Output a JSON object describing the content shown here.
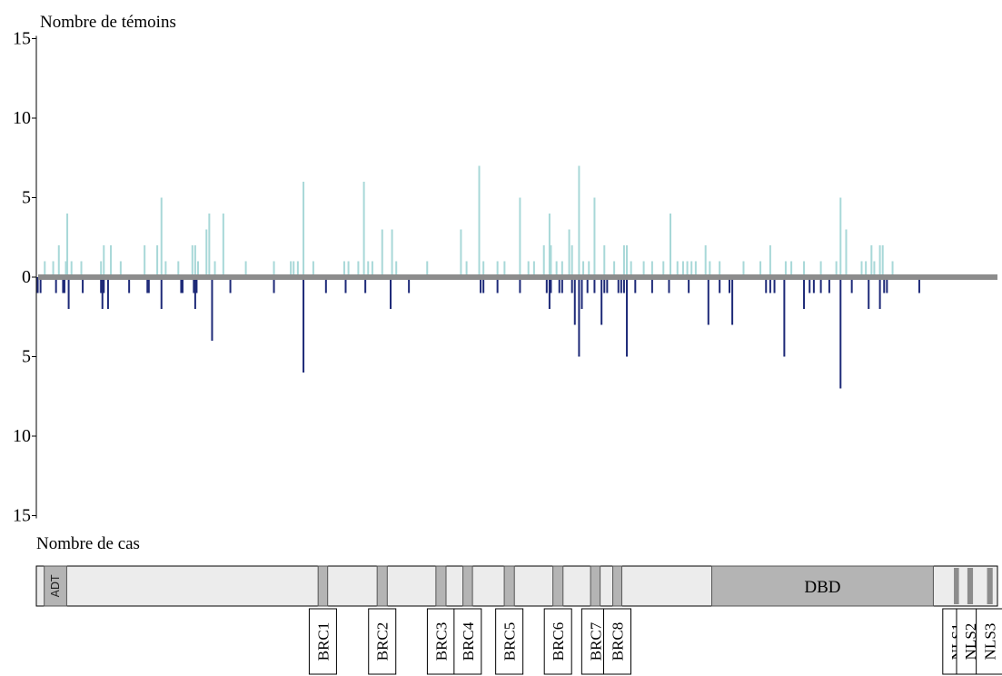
{
  "chart_data": {
    "type": "bar",
    "top_label": "Nombre de témoins",
    "bottom_label": "Nombre de cas",
    "y_ticks_top": [
      "15",
      "10",
      "5",
      "0"
    ],
    "y_ticks_bottom": [
      "5",
      "10",
      "15"
    ],
    "ylim_top": [
      0,
      15
    ],
    "ylim_bottom": [
      0,
      15
    ],
    "colors": {
      "controls": "#a8d8d8",
      "cases": "#1e2a78",
      "axis_band": "#8c8c8c",
      "domain": "#b4b4b4",
      "protein": "#ececec"
    },
    "protein_length": 3418,
    "x_range": [
      0,
      3418
    ],
    "controls": [
      [
        30,
        1
      ],
      [
        60,
        1
      ],
      [
        80,
        2
      ],
      [
        105,
        1
      ],
      [
        110,
        4
      ],
      [
        125,
        1
      ],
      [
        160,
        1
      ],
      [
        230,
        1
      ],
      [
        240,
        2
      ],
      [
        265,
        2
      ],
      [
        300,
        1
      ],
      [
        385,
        2
      ],
      [
        430,
        2
      ],
      [
        445,
        5
      ],
      [
        460,
        1
      ],
      [
        505,
        1
      ],
      [
        555,
        2
      ],
      [
        565,
        2
      ],
      [
        575,
        1
      ],
      [
        605,
        3
      ],
      [
        615,
        4
      ],
      [
        635,
        1
      ],
      [
        665,
        4
      ],
      [
        745,
        1
      ],
      [
        845,
        1
      ],
      [
        905,
        1
      ],
      [
        915,
        1
      ],
      [
        930,
        1
      ],
      [
        950,
        6
      ],
      [
        985,
        1
      ],
      [
        1095,
        1
      ],
      [
        1110,
        1
      ],
      [
        1145,
        1
      ],
      [
        1165,
        6
      ],
      [
        1180,
        1
      ],
      [
        1195,
        1
      ],
      [
        1230,
        3
      ],
      [
        1265,
        3
      ],
      [
        1280,
        1
      ],
      [
        1390,
        1
      ],
      [
        1510,
        3
      ],
      [
        1530,
        1
      ],
      [
        1575,
        7
      ],
      [
        1590,
        1
      ],
      [
        1640,
        1
      ],
      [
        1665,
        1
      ],
      [
        1720,
        5
      ],
      [
        1750,
        1
      ],
      [
        1770,
        1
      ],
      [
        1805,
        2
      ],
      [
        1825,
        4
      ],
      [
        1830,
        2
      ],
      [
        1850,
        1
      ],
      [
        1870,
        1
      ],
      [
        1895,
        3
      ],
      [
        1905,
        2
      ],
      [
        1930,
        7
      ],
      [
        1945,
        1
      ],
      [
        1965,
        1
      ],
      [
        1985,
        5
      ],
      [
        2020,
        2
      ],
      [
        2055,
        1
      ],
      [
        2090,
        2
      ],
      [
        2100,
        2
      ],
      [
        2115,
        1
      ],
      [
        2160,
        1
      ],
      [
        2190,
        1
      ],
      [
        2230,
        1
      ],
      [
        2255,
        4
      ],
      [
        2280,
        1
      ],
      [
        2300,
        1
      ],
      [
        2315,
        1
      ],
      [
        2330,
        1
      ],
      [
        2345,
        1
      ],
      [
        2380,
        2
      ],
      [
        2395,
        1
      ],
      [
        2430,
        1
      ],
      [
        2515,
        1
      ],
      [
        2575,
        1
      ],
      [
        2610,
        2
      ],
      [
        2665,
        1
      ],
      [
        2685,
        1
      ],
      [
        2730,
        1
      ],
      [
        2790,
        1
      ],
      [
        2845,
        1
      ],
      [
        2860,
        5
      ],
      [
        2880,
        3
      ],
      [
        2935,
        1
      ],
      [
        2950,
        1
      ],
      [
        2970,
        2
      ],
      [
        2980,
        1
      ],
      [
        3000,
        2
      ],
      [
        3010,
        2
      ],
      [
        3045,
        1
      ]
    ],
    "cases": [
      [
        5,
        1
      ],
      [
        15,
        1
      ],
      [
        70,
        1
      ],
      [
        95,
        1
      ],
      [
        100,
        1
      ],
      [
        115,
        2
      ],
      [
        165,
        1
      ],
      [
        230,
        1
      ],
      [
        235,
        2
      ],
      [
        240,
        1
      ],
      [
        255,
        2
      ],
      [
        330,
        1
      ],
      [
        395,
        1
      ],
      [
        400,
        1
      ],
      [
        445,
        2
      ],
      [
        515,
        1
      ],
      [
        520,
        1
      ],
      [
        560,
        1
      ],
      [
        565,
        2
      ],
      [
        570,
        1
      ],
      [
        625,
        4
      ],
      [
        690,
        1
      ],
      [
        845,
        1
      ],
      [
        950,
        6
      ],
      [
        1030,
        1
      ],
      [
        1100,
        1
      ],
      [
        1170,
        1
      ],
      [
        1260,
        2
      ],
      [
        1325,
        1
      ],
      [
        1580,
        1
      ],
      [
        1590,
        1
      ],
      [
        1640,
        1
      ],
      [
        1720,
        1
      ],
      [
        1815,
        1
      ],
      [
        1825,
        2
      ],
      [
        1830,
        1
      ],
      [
        1860,
        1
      ],
      [
        1870,
        1
      ],
      [
        1905,
        1
      ],
      [
        1915,
        3
      ],
      [
        1930,
        5
      ],
      [
        1940,
        2
      ],
      [
        1960,
        1
      ],
      [
        1985,
        1
      ],
      [
        2010,
        3
      ],
      [
        2020,
        1
      ],
      [
        2030,
        1
      ],
      [
        2070,
        1
      ],
      [
        2080,
        1
      ],
      [
        2090,
        1
      ],
      [
        2100,
        5
      ],
      [
        2130,
        1
      ],
      [
        2190,
        1
      ],
      [
        2250,
        1
      ],
      [
        2320,
        1
      ],
      [
        2390,
        3
      ],
      [
        2430,
        1
      ],
      [
        2465,
        1
      ],
      [
        2475,
        3
      ],
      [
        2595,
        1
      ],
      [
        2610,
        1
      ],
      [
        2625,
        1
      ],
      [
        2660,
        5
      ],
      [
        2730,
        2
      ],
      [
        2750,
        1
      ],
      [
        2765,
        1
      ],
      [
        2790,
        1
      ],
      [
        2820,
        1
      ],
      [
        2860,
        7
      ],
      [
        2900,
        1
      ],
      [
        2960,
        2
      ],
      [
        3000,
        2
      ],
      [
        3015,
        1
      ],
      [
        3025,
        1
      ],
      [
        3140,
        1
      ]
    ],
    "domains": [
      {
        "label": "ADT",
        "start": 28,
        "end": 108,
        "style": "box",
        "callout": false
      },
      {
        "label": "BRC1",
        "start": 1002,
        "end": 1036,
        "style": "box",
        "callout": true
      },
      {
        "label": "BRC2",
        "start": 1212,
        "end": 1248,
        "style": "box",
        "callout": true
      },
      {
        "label": "BRC3",
        "start": 1421,
        "end": 1457,
        "style": "box",
        "callout": true
      },
      {
        "label": "BRC4",
        "start": 1517,
        "end": 1551,
        "style": "box",
        "callout": true
      },
      {
        "label": "BRC5",
        "start": 1664,
        "end": 1700,
        "style": "box",
        "callout": true
      },
      {
        "label": "BRC6",
        "start": 1837,
        "end": 1873,
        "style": "box",
        "callout": true
      },
      {
        "label": "BRC7",
        "start": 1971,
        "end": 2005,
        "style": "box",
        "callout": true
      },
      {
        "label": "BRC8",
        "start": 2050,
        "end": 2082,
        "style": "box",
        "callout": true
      },
      {
        "label": "DBD",
        "start": 2402,
        "end": 3190,
        "style": "box",
        "callout": false
      },
      {
        "label": "NLS1",
        "start": 3263,
        "end": 3281,
        "style": "bar",
        "callout": true
      },
      {
        "label": "NLS2",
        "start": 3311,
        "end": 3331,
        "style": "bar",
        "callout": true
      },
      {
        "label": "NLS3",
        "start": 3381,
        "end": 3401,
        "style": "bar",
        "callout": true
      }
    ]
  }
}
